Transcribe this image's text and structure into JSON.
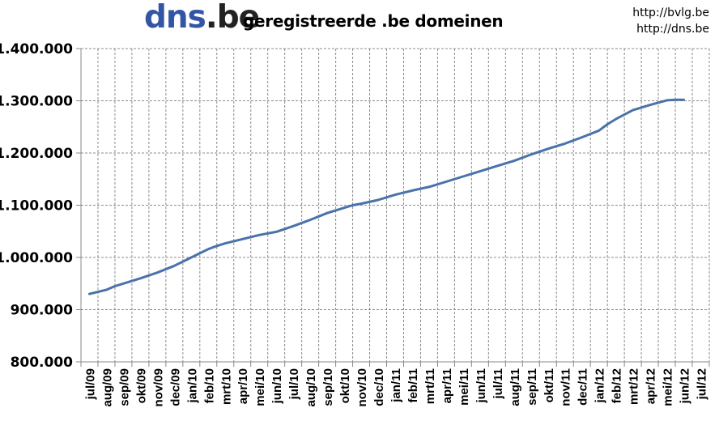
{
  "header": {
    "logo_part1": "dns",
    "logo_dot": ".",
    "logo_part2": "be",
    "title": "geregistreerde .be domeinen",
    "link1": "http://bvlg.be",
    "link2": "http://dns.be"
  },
  "chart_data": {
    "type": "line",
    "title": "geregistreerde .be domeinen",
    "xlabel": "",
    "ylabel": "",
    "ylim": [
      800000,
      1400000
    ],
    "grid": true,
    "legend": "none",
    "line_color": "#4a72aa",
    "y_ticks": [
      "1.400.000",
      "1.300.000",
      "1.200.000",
      "1.100.000",
      "1.000.000",
      "900.000",
      "800.000"
    ],
    "y_tick_values": [
      1400000,
      1300000,
      1200000,
      1100000,
      1000000,
      900000,
      800000
    ],
    "categories": [
      "jul/09",
      "aug/09",
      "sep/09",
      "okt/09",
      "nov/09",
      "dec/09",
      "jan/10",
      "feb/10",
      "mrt/10",
      "apr/10",
      "mei/10",
      "jun/10",
      "jul/10",
      "aug/10",
      "sep/10",
      "okt/10",
      "nov/10",
      "dec/10",
      "jan/11",
      "feb/11",
      "mrt/11",
      "apr/11",
      "mei/11",
      "jun/11",
      "jul/11",
      "aug/11",
      "sep/11",
      "okt/11",
      "nov/11",
      "dec/11",
      "jan/12",
      "feb/12",
      "mrt/12",
      "apr/12",
      "mei/12",
      "jun/12",
      "jul/12"
    ],
    "series": [
      {
        "values": [
          [
            0,
            930000
          ],
          [
            1,
            938000
          ],
          [
            1.5,
            945000
          ],
          [
            2,
            950000
          ],
          [
            3,
            960000
          ],
          [
            4,
            971000
          ],
          [
            5,
            984000
          ],
          [
            6,
            1000000
          ],
          [
            7,
            1016000
          ],
          [
            7.5,
            1022000
          ],
          [
            8,
            1027000
          ],
          [
            9,
            1035000
          ],
          [
            10,
            1043000
          ],
          [
            11,
            1049000
          ],
          [
            12,
            1060000
          ],
          [
            13,
            1072000
          ],
          [
            14,
            1085000
          ],
          [
            15,
            1095000
          ],
          [
            15.5,
            1100000
          ],
          [
            16,
            1103000
          ],
          [
            17,
            1110000
          ],
          [
            18,
            1120000
          ],
          [
            19,
            1128000
          ],
          [
            20,
            1135000
          ],
          [
            21,
            1145000
          ],
          [
            22,
            1155000
          ],
          [
            23,
            1165000
          ],
          [
            24,
            1175000
          ],
          [
            25,
            1185000
          ],
          [
            26,
            1197000
          ],
          [
            27,
            1208000
          ],
          [
            27.5,
            1213000
          ],
          [
            28,
            1218000
          ],
          [
            29,
            1230000
          ],
          [
            30,
            1243000
          ],
          [
            30.5,
            1255000
          ],
          [
            31,
            1265000
          ],
          [
            32,
            1282000
          ],
          [
            33,
            1292000
          ],
          [
            34,
            1301000
          ],
          [
            34.5,
            1302000
          ],
          [
            35,
            1302000
          ]
        ]
      }
    ]
  }
}
